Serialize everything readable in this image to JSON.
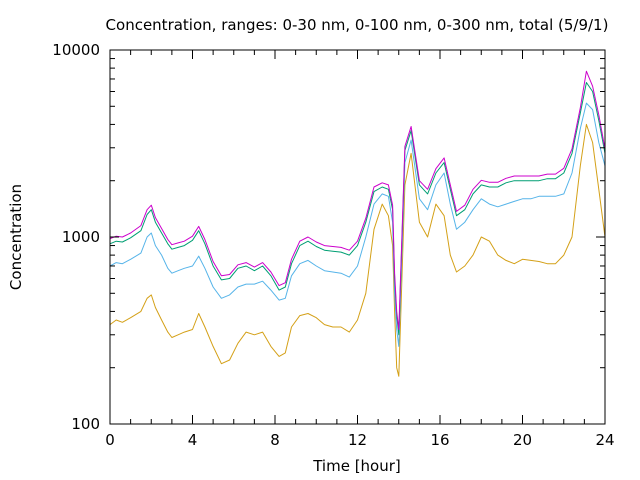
{
  "chart_data": {
    "type": "line",
    "title": "Concentration, ranges: 0-30 nm, 0-100 nm, 0-300 nm, total (5/9/1)",
    "xlabel": "Time [hour]",
    "ylabel": "Concentration",
    "xlim": [
      0,
      24
    ],
    "ylim": [
      100,
      10000
    ],
    "yscale": "log",
    "grid": false,
    "legend": "none",
    "xticks": [
      0,
      4,
      8,
      12,
      16,
      20,
      24
    ],
    "yticks": [
      100,
      1000,
      10000
    ],
    "series": [
      {
        "color": "#d4a017",
        "x": [
          0,
          0.3,
          0.6,
          1.0,
          1.5,
          1.8,
          2.0,
          2.2,
          2.5,
          2.8,
          3.0,
          3.3,
          3.6,
          4.0,
          4.3,
          4.6,
          5.0,
          5.4,
          5.8,
          6.2,
          6.6,
          7.0,
          7.4,
          7.8,
          8.2,
          8.5,
          8.8,
          9.2,
          9.6,
          10.0,
          10.4,
          10.8,
          11.2,
          11.6,
          12.0,
          12.4,
          12.8,
          13.2,
          13.5,
          13.7,
          13.8,
          13.9,
          14.0,
          14.3,
          14.6,
          15.0,
          15.4,
          15.8,
          16.2,
          16.5,
          16.8,
          17.2,
          17.6,
          18.0,
          18.4,
          18.8,
          19.2,
          19.6,
          20.0,
          20.4,
          20.8,
          21.2,
          21.6,
          22.0,
          22.4,
          22.8,
          23.1,
          23.4,
          23.7,
          24.0
        ],
        "y": [
          340,
          360,
          350,
          370,
          400,
          470,
          490,
          420,
          360,
          310,
          290,
          300,
          310,
          320,
          390,
          330,
          260,
          210,
          220,
          270,
          310,
          300,
          310,
          260,
          230,
          240,
          330,
          380,
          390,
          370,
          340,
          330,
          330,
          310,
          360,
          500,
          1100,
          1500,
          1300,
          900,
          400,
          200,
          180,
          1900,
          2800,
          1200,
          1000,
          1500,
          1300,
          800,
          650,
          700,
          800,
          1000,
          950,
          800,
          750,
          720,
          760,
          750,
          740,
          720,
          720,
          800,
          1000,
          2400,
          4000,
          3200,
          1800,
          1000
        ]
      },
      {
        "color": "#56b4e9",
        "x": [
          0,
          0.3,
          0.6,
          1.0,
          1.5,
          1.8,
          2.0,
          2.2,
          2.5,
          2.8,
          3.0,
          3.3,
          3.6,
          4.0,
          4.3,
          4.6,
          5.0,
          5.4,
          5.8,
          6.2,
          6.6,
          7.0,
          7.4,
          7.8,
          8.2,
          8.5,
          8.8,
          9.2,
          9.6,
          10.0,
          10.4,
          10.8,
          11.2,
          11.6,
          12.0,
          12.4,
          12.8,
          13.2,
          13.5,
          13.7,
          13.8,
          13.9,
          14.0,
          14.3,
          14.6,
          15.0,
          15.4,
          15.8,
          16.2,
          16.5,
          16.8,
          17.2,
          17.6,
          18.0,
          18.4,
          18.8,
          19.2,
          19.6,
          20.0,
          20.4,
          20.8,
          21.2,
          21.6,
          22.0,
          22.4,
          22.8,
          23.1,
          23.4,
          23.7,
          24.0
        ],
        "y": [
          700,
          730,
          720,
          760,
          820,
          1000,
          1050,
          900,
          800,
          680,
          640,
          660,
          680,
          700,
          790,
          680,
          540,
          470,
          490,
          540,
          560,
          560,
          580,
          520,
          460,
          470,
          620,
          720,
          750,
          700,
          660,
          650,
          640,
          610,
          700,
          1000,
          1500,
          1700,
          1650,
          1200,
          500,
          320,
          260,
          2500,
          3300,
          1600,
          1400,
          1900,
          2200,
          1500,
          1100,
          1200,
          1400,
          1600,
          1500,
          1450,
          1500,
          1550,
          1600,
          1600,
          1650,
          1650,
          1650,
          1700,
          2200,
          3800,
          5200,
          4800,
          3200,
          2400
        ]
      },
      {
        "color": "#009e73",
        "x": [
          0,
          0.3,
          0.6,
          1.0,
          1.5,
          1.8,
          2.0,
          2.2,
          2.5,
          2.8,
          3.0,
          3.3,
          3.6,
          4.0,
          4.3,
          4.6,
          5.0,
          5.4,
          5.8,
          6.2,
          6.6,
          7.0,
          7.4,
          7.8,
          8.2,
          8.5,
          8.8,
          9.2,
          9.6,
          10.0,
          10.4,
          10.8,
          11.2,
          11.6,
          12.0,
          12.4,
          12.8,
          13.2,
          13.5,
          13.7,
          13.8,
          13.9,
          14.0,
          14.3,
          14.6,
          15.0,
          15.4,
          15.8,
          16.2,
          16.5,
          16.8,
          17.2,
          17.6,
          18.0,
          18.4,
          18.8,
          19.2,
          19.6,
          20.0,
          20.4,
          20.8,
          21.2,
          21.6,
          22.0,
          22.4,
          22.8,
          23.1,
          23.4,
          23.7,
          24.0
        ],
        "y": [
          920,
          950,
          940,
          990,
          1080,
          1320,
          1400,
          1200,
          1050,
          920,
          860,
          880,
          900,
          960,
          1080,
          920,
          700,
          590,
          600,
          680,
          700,
          660,
          700,
          620,
          520,
          540,
          720,
          900,
          950,
          890,
          850,
          840,
          830,
          800,
          900,
          1200,
          1750,
          1850,
          1800,
          1400,
          600,
          380,
          300,
          2900,
          3700,
          1900,
          1700,
          2200,
          2500,
          1800,
          1300,
          1400,
          1700,
          1900,
          1850,
          1850,
          1950,
          2000,
          2000,
          2000,
          2000,
          2050,
          2050,
          2200,
          2800,
          4600,
          6700,
          6000,
          4200,
          2800
        ]
      },
      {
        "color": "#cc00cc",
        "x": [
          0,
          0.3,
          0.6,
          1.0,
          1.5,
          1.8,
          2.0,
          2.2,
          2.5,
          2.8,
          3.0,
          3.3,
          3.6,
          4.0,
          4.3,
          4.6,
          5.0,
          5.4,
          5.8,
          6.2,
          6.6,
          7.0,
          7.4,
          7.8,
          8.2,
          8.5,
          8.8,
          9.2,
          9.6,
          10.0,
          10.4,
          10.8,
          11.2,
          11.6,
          12.0,
          12.4,
          12.8,
          13.2,
          13.5,
          13.7,
          13.8,
          13.9,
          14.0,
          14.3,
          14.6,
          15.0,
          15.4,
          15.8,
          16.2,
          16.5,
          16.8,
          17.2,
          17.6,
          18.0,
          18.4,
          18.8,
          19.2,
          19.6,
          20.0,
          20.4,
          20.8,
          21.2,
          21.6,
          22.0,
          22.4,
          22.8,
          23.1,
          23.4,
          23.7,
          24.0
        ],
        "y": [
          980,
          1010,
          1000,
          1050,
          1150,
          1400,
          1480,
          1270,
          1110,
          970,
          910,
          930,
          950,
          1010,
          1140,
          970,
          740,
          620,
          630,
          710,
          730,
          690,
          730,
          650,
          550,
          570,
          760,
          950,
          1000,
          940,
          900,
          890,
          880,
          850,
          950,
          1260,
          1850,
          1950,
          1900,
          1480,
          640,
          400,
          320,
          3050,
          3900,
          2000,
          1800,
          2320,
          2650,
          1900,
          1370,
          1480,
          1800,
          2010,
          1960,
          1960,
          2060,
          2120,
          2120,
          2120,
          2120,
          2170,
          2170,
          2330,
          2960,
          4900,
          7700,
          6400,
          4500,
          2950
        ]
      }
    ]
  }
}
